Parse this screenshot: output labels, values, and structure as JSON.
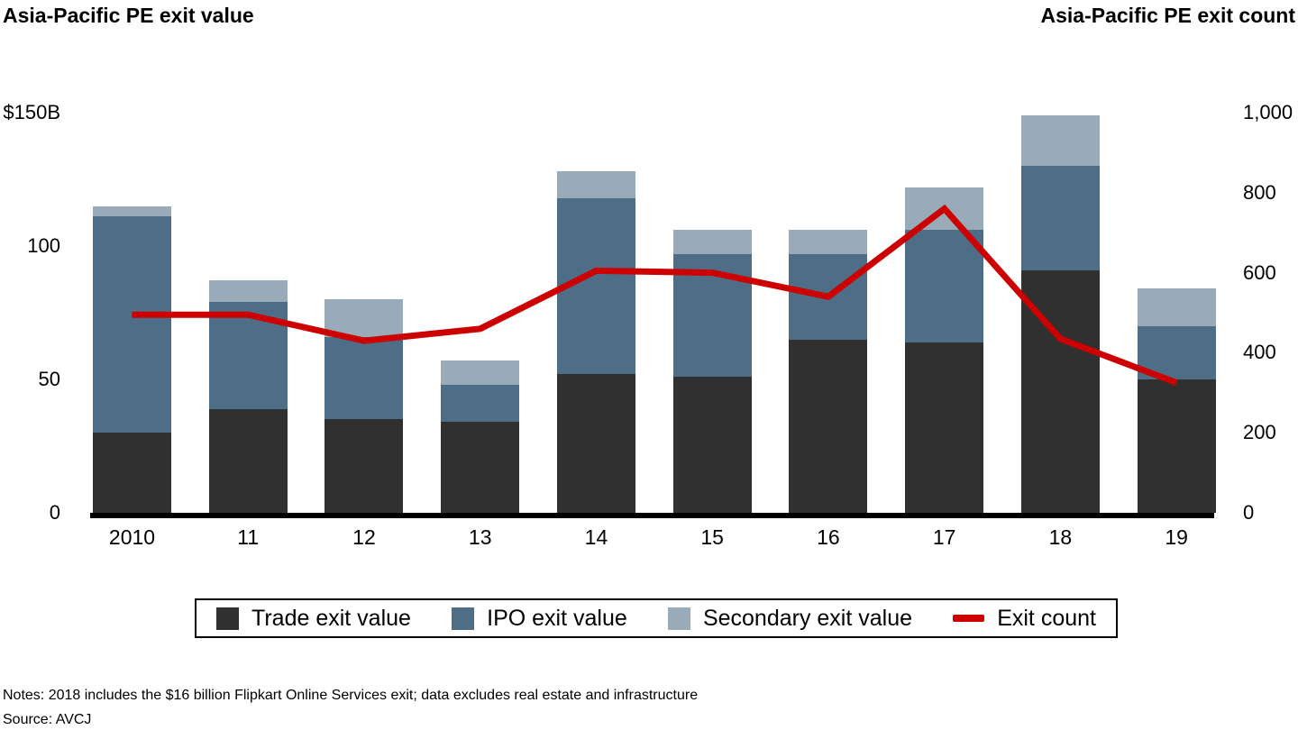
{
  "titles": {
    "left": "Asia-Pacific PE exit value",
    "right": "Asia-Pacific PE exit count"
  },
  "chart_data": {
    "type": "bar",
    "subtype": "stacked-bar-with-line-overlay",
    "categories": [
      "2010",
      "11",
      "12",
      "13",
      "14",
      "15",
      "16",
      "17",
      "18",
      "19"
    ],
    "series": [
      {
        "name": "Trade exit value",
        "color": "#303030",
        "values": [
          30,
          39,
          35,
          34,
          52,
          51,
          65,
          64,
          91,
          50
        ]
      },
      {
        "name": "IPO exit value",
        "color": "#4e6d87",
        "values": [
          81,
          40,
          31,
          14,
          66,
          46,
          32,
          42,
          39,
          20
        ]
      },
      {
        "name": "Secondary exit value",
        "color": "#99aab8",
        "values": [
          4,
          8,
          14,
          9,
          10,
          9,
          9,
          16,
          19,
          14
        ]
      }
    ],
    "totals": [
      115,
      87,
      80,
      57,
      128,
      106,
      106,
      122,
      149,
      84
    ],
    "line": {
      "name": "Exit count",
      "color": "#cc0000",
      "values": [
        495,
        495,
        430,
        460,
        605,
        600,
        540,
        760,
        435,
        325
      ]
    },
    "left_axis": {
      "title": "",
      "unit": "$B",
      "ticks": [
        {
          "label": "$150B",
          "value": 150
        },
        {
          "label": "100",
          "value": 100
        },
        {
          "label": "50",
          "value": 50
        },
        {
          "label": "0",
          "value": 0
        }
      ],
      "range": [
        0,
        150
      ]
    },
    "right_axis": {
      "title": "",
      "unit": "count",
      "ticks": [
        {
          "label": "1,000",
          "value": 1000
        },
        {
          "label": "800",
          "value": 800
        },
        {
          "label": "600",
          "value": 600
        },
        {
          "label": "400",
          "value": 400
        },
        {
          "label": "200",
          "value": 200
        },
        {
          "label": "0",
          "value": 0
        }
      ],
      "range": [
        0,
        1000
      ]
    },
    "grid": false,
    "legend_position": "bottom"
  },
  "legend": {
    "items": [
      {
        "label": "Trade exit value",
        "swatch": "square",
        "color": "#303030"
      },
      {
        "label": "IPO exit value",
        "swatch": "square",
        "color": "#4e6d87"
      },
      {
        "label": "Secondary exit value",
        "swatch": "square",
        "color": "#99aab8"
      },
      {
        "label": "Exit count",
        "swatch": "dash",
        "color": "#cc0000"
      }
    ]
  },
  "notes": "Notes: 2018 includes the $16 billion Flipkart Online Services exit; data excludes real estate and infrastructure",
  "source": "Source: AVCJ",
  "colors": {
    "axis": "#000000",
    "background": "#ffffff"
  }
}
